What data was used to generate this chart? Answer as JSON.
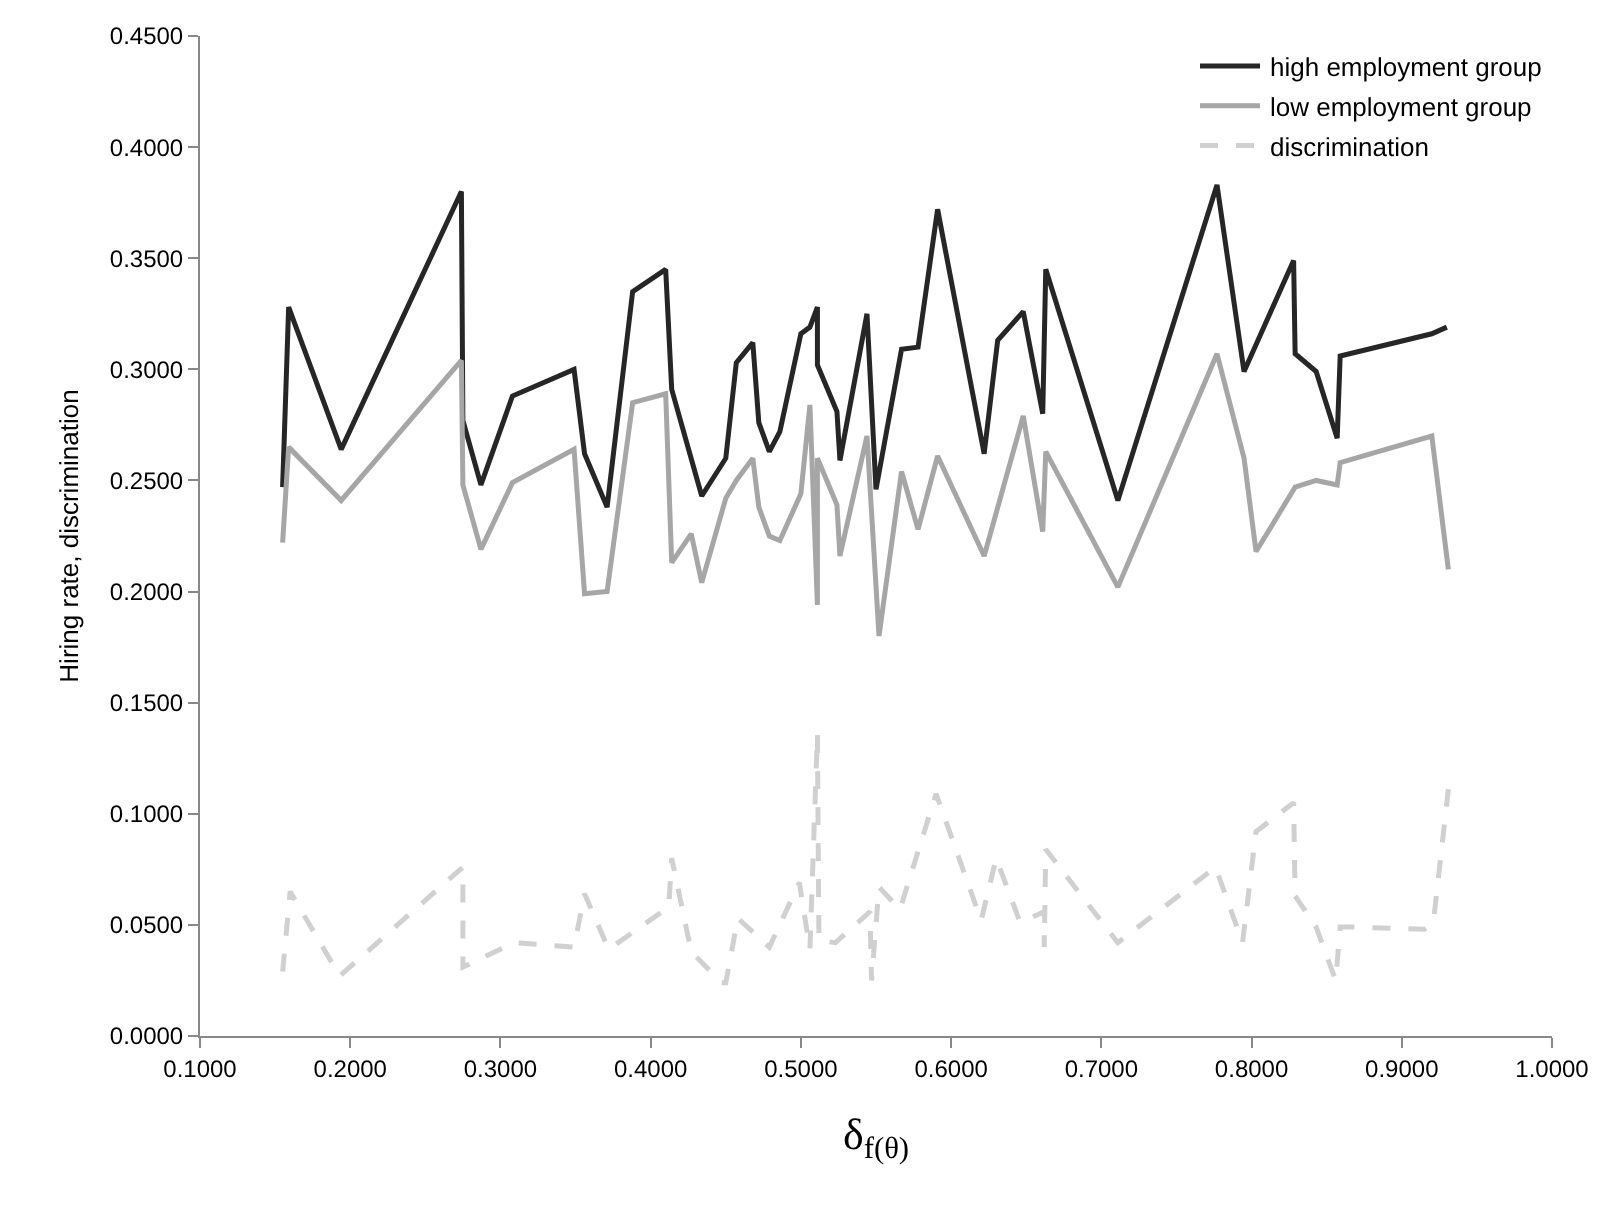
{
  "chart_data": {
    "type": "line",
    "xlabel": "δ$_{f(θ)}$",
    "ylabel": "Hiring rate, discrimination",
    "xlim": [
      0.1,
      1.0
    ],
    "xticks": [
      {
        "value": 0.1,
        "label": "0.1000"
      },
      {
        "value": 0.2,
        "label": "0.2000"
      },
      {
        "value": 0.3,
        "label": "0.3000"
      },
      {
        "value": 0.4,
        "label": "0.4000"
      },
      {
        "value": 0.5,
        "label": "0.5000"
      },
      {
        "value": 0.6,
        "label": "0.6000"
      },
      {
        "value": 0.7,
        "label": "0.7000"
      },
      {
        "value": 0.8,
        "label": "0.8000"
      },
      {
        "value": 0.9,
        "label": "0.9000"
      },
      {
        "value": 1.0,
        "label": "1.0000"
      }
    ],
    "ylim": [
      0,
      0.45
    ],
    "yticks": [
      {
        "value": 0,
        "label": "0.0000"
      },
      {
        "value": 0.05,
        "label": "0.0500"
      },
      {
        "value": 0.1,
        "label": "0.1000"
      },
      {
        "value": 0.15,
        "label": "0.1500"
      },
      {
        "value": 0.2,
        "label": "0.2000"
      },
      {
        "value": 0.25,
        "label": "0.2500"
      },
      {
        "value": 0.3,
        "label": "0.3000"
      },
      {
        "value": 0.35,
        "label": "0.3500"
      },
      {
        "value": 0.4,
        "label": "0.4000"
      },
      {
        "value": 0.45,
        "label": "0.4500"
      }
    ],
    "grid": false,
    "legend": "top right",
    "marker": "none",
    "series": [
      {
        "name": "high employment group",
        "color": "#262626",
        "line_style": "solid",
        "x": [
          0.155,
          0.159,
          0.194,
          0.274,
          0.275,
          0.287,
          0.308,
          0.349,
          0.356,
          0.371,
          0.388,
          0.41,
          0.414,
          0.434,
          0.45,
          0.457,
          0.468,
          0.472,
          0.479,
          0.486,
          0.5,
          0.506,
          0.511,
          0.511,
          0.524,
          0.526,
          0.544,
          0.55,
          0.567,
          0.578,
          0.591,
          0.622,
          0.631,
          0.648,
          0.661,
          0.663,
          0.711,
          0.777,
          0.795,
          0.828,
          0.829,
          0.843,
          0.857,
          0.859,
          0.92,
          0.93
        ],
        "values": [
          0.247,
          0.328,
          0.264,
          0.38,
          0.277,
          0.248,
          0.288,
          0.3,
          0.262,
          0.238,
          0.335,
          0.345,
          0.291,
          0.243,
          0.26,
          0.303,
          0.312,
          0.276,
          0.263,
          0.272,
          0.316,
          0.319,
          0.328,
          0.302,
          0.281,
          0.259,
          0.325,
          0.246,
          0.309,
          0.31,
          0.372,
          0.262,
          0.313,
          0.326,
          0.28,
          0.345,
          0.241,
          0.383,
          0.299,
          0.349,
          0.307,
          0.299,
          0.269,
          0.306,
          0.316,
          0.319
        ]
      },
      {
        "name": "low employment group",
        "color": "#a6a6a6",
        "line_style": "solid",
        "x": [
          0.155,
          0.159,
          0.194,
          0.274,
          0.275,
          0.287,
          0.308,
          0.349,
          0.356,
          0.371,
          0.388,
          0.41,
          0.414,
          0.427,
          0.434,
          0.45,
          0.457,
          0.468,
          0.472,
          0.479,
          0.486,
          0.5,
          0.506,
          0.511,
          0.511,
          0.524,
          0.526,
          0.544,
          0.552,
          0.567,
          0.578,
          0.591,
          0.622,
          0.648,
          0.661,
          0.663,
          0.711,
          0.777,
          0.795,
          0.803,
          0.829,
          0.843,
          0.857,
          0.859,
          0.92,
          0.931
        ],
        "values": [
          0.222,
          0.265,
          0.241,
          0.304,
          0.248,
          0.219,
          0.249,
          0.264,
          0.199,
          0.2,
          0.285,
          0.289,
          0.213,
          0.226,
          0.204,
          0.242,
          0.25,
          0.26,
          0.238,
          0.225,
          0.223,
          0.244,
          0.284,
          0.194,
          0.26,
          0.239,
          0.216,
          0.27,
          0.18,
          0.254,
          0.228,
          0.261,
          0.216,
          0.279,
          0.227,
          0.263,
          0.202,
          0.307,
          0.26,
          0.218,
          0.247,
          0.25,
          0.248,
          0.258,
          0.27,
          0.21
        ]
      },
      {
        "name": "discrimination",
        "color": "#d0d0d0",
        "line_style": "dashed",
        "x": [
          0.155,
          0.16,
          0.193,
          0.275,
          0.275,
          0.309,
          0.349,
          0.356,
          0.372,
          0.412,
          0.414,
          0.427,
          0.447,
          0.45,
          0.458,
          0.479,
          0.499,
          0.506,
          0.511,
          0.512,
          0.523,
          0.546,
          0.547,
          0.552,
          0.566,
          0.59,
          0.62,
          0.63,
          0.646,
          0.662,
          0.662,
          0.663,
          0.711,
          0.776,
          0.794,
          0.803,
          0.828,
          0.829,
          0.843,
          0.856,
          0.859,
          0.87,
          0.915,
          0.921,
          0.931
        ],
        "values": [
          0.029,
          0.065,
          0.027,
          0.076,
          0.031,
          0.042,
          0.04,
          0.064,
          0.039,
          0.058,
          0.08,
          0.038,
          0.024,
          0.024,
          0.053,
          0.04,
          0.069,
          0.039,
          0.136,
          0.043,
          0.042,
          0.056,
          0.025,
          0.067,
          0.057,
          0.109,
          0.052,
          0.08,
          0.051,
          0.056,
          0.04,
          0.084,
          0.042,
          0.076,
          0.042,
          0.092,
          0.105,
          0.063,
          0.049,
          0.025,
          0.049,
          0.049,
          0.048,
          0.051,
          0.111
        ]
      }
    ]
  }
}
